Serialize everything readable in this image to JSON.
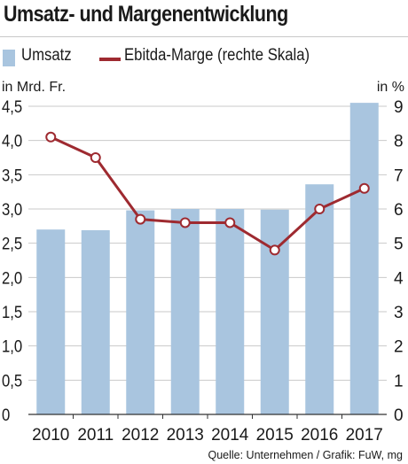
{
  "title": "Umsatz- und Margenentwicklung",
  "legend": {
    "bar_label": "Umsatz",
    "line_label": "Ebitda-Marge (rechte Skala)"
  },
  "source": "Quelle: Unternehmen / Grafik: FuW, mg",
  "colors": {
    "bar": "#a9c5df",
    "line": "#9e2a30",
    "grid": "#c9c9c9"
  },
  "chart_data": {
    "type": "bar",
    "categories": [
      "2010",
      "2011",
      "2012",
      "2013",
      "2014",
      "2015",
      "2016",
      "2017"
    ],
    "series": [
      {
        "name": "Umsatz",
        "type": "bar",
        "axis": "left",
        "values": [
          2.7,
          2.69,
          2.98,
          3.0,
          3.0,
          2.99,
          3.36,
          4.55
        ]
      },
      {
        "name": "Ebitda-Marge (rechte Skala)",
        "type": "line",
        "axis": "right",
        "values": [
          8.1,
          7.5,
          5.7,
          5.6,
          5.6,
          4.8,
          6.0,
          6.6
        ]
      }
    ],
    "ylabel": "in Mrd. Fr.",
    "y2label": "in %",
    "ylim": [
      0,
      4.5
    ],
    "y2lim": [
      0,
      9
    ],
    "yticks": [
      "0",
      "0,5",
      "1,0",
      "1,5",
      "2,0",
      "2,5",
      "3,0",
      "3,5",
      "4,0",
      "4,5"
    ],
    "y2ticks": [
      "0",
      "1",
      "2",
      "3",
      "4",
      "5",
      "6",
      "7",
      "8",
      "9"
    ],
    "grid": true
  }
}
